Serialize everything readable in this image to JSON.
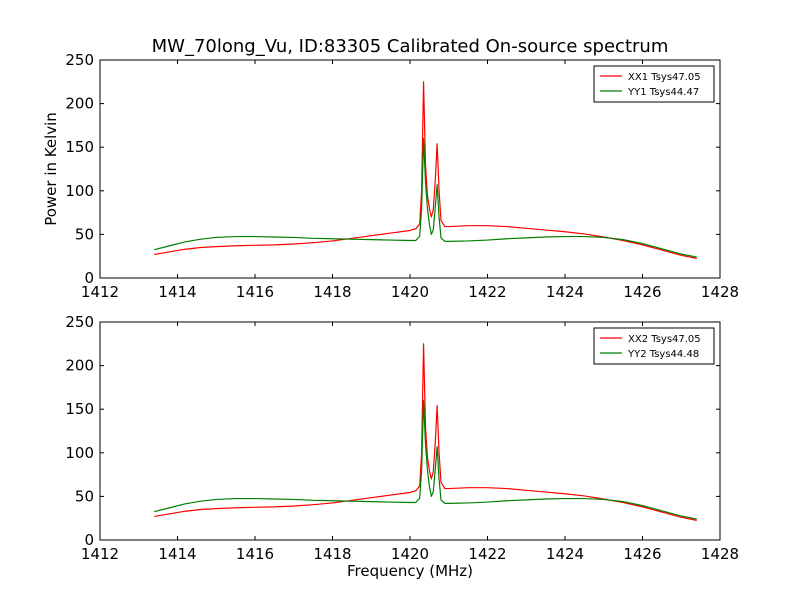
{
  "title": "MW_70long_Vu, ID:83305 Calibrated On-source spectrum",
  "colors": {
    "xx": "#ff0000",
    "yy": "#007f00"
  },
  "chart_data": [
    {
      "type": "line",
      "title": "MW_70long_Vu, ID:83305 Calibrated On-source spectrum",
      "xlabel": "",
      "ylabel": "Power in Kelvin",
      "xlim": [
        1412,
        1428
      ],
      "ylim": [
        0,
        250
      ],
      "xticks": [
        1412,
        1414,
        1416,
        1418,
        1420,
        1422,
        1424,
        1426,
        1428
      ],
      "yticks": [
        0,
        50,
        100,
        150,
        200,
        250
      ],
      "legend": "top-right",
      "series": [
        {
          "name": "XX1 Tsys47.05",
          "color": "#ff0000",
          "x": [
            1413.4,
            1413.8,
            1414.2,
            1414.6,
            1415.0,
            1415.5,
            1416.0,
            1416.5,
            1417.0,
            1417.5,
            1418.0,
            1418.5,
            1419.0,
            1419.5,
            1420.0,
            1420.15,
            1420.25,
            1420.3,
            1420.35,
            1420.4,
            1420.45,
            1420.5,
            1420.55,
            1420.6,
            1420.65,
            1420.7,
            1420.75,
            1420.8,
            1420.9,
            1421.0,
            1421.5,
            1422.0,
            1422.5,
            1423.0,
            1423.5,
            1424.0,
            1424.5,
            1425.0,
            1425.5,
            1426.0,
            1426.5,
            1427.0,
            1427.4
          ],
          "y": [
            27,
            30,
            33,
            35,
            36,
            37,
            37.5,
            38,
            39,
            40.5,
            42.5,
            45.5,
            48.5,
            51.5,
            54.5,
            56.5,
            62,
            100,
            225,
            130,
            95,
            80,
            70,
            78,
            110,
            154,
            100,
            66,
            59,
            59,
            60,
            60,
            59,
            57,
            55,
            53,
            50.5,
            47,
            43,
            38,
            32,
            26,
            22.5
          ]
        },
        {
          "name": "YY1 Tsys44.47",
          "color": "#007f00",
          "x": [
            1413.4,
            1413.8,
            1414.2,
            1414.6,
            1415.0,
            1415.5,
            1416.0,
            1416.5,
            1417.0,
            1417.5,
            1418.0,
            1418.5,
            1419.0,
            1419.5,
            1420.0,
            1420.15,
            1420.25,
            1420.3,
            1420.35,
            1420.4,
            1420.45,
            1420.5,
            1420.55,
            1420.6,
            1420.65,
            1420.7,
            1420.75,
            1420.8,
            1420.9,
            1421.0,
            1421.5,
            1422.0,
            1422.5,
            1423.0,
            1423.5,
            1424.0,
            1424.5,
            1425.0,
            1425.5,
            1426.0,
            1426.5,
            1427.0,
            1427.4
          ],
          "y": [
            32.5,
            37,
            41.5,
            44.5,
            46.5,
            47.5,
            47.5,
            47,
            46.5,
            45.5,
            45,
            44.5,
            44,
            43.5,
            43,
            43,
            48,
            80,
            160,
            110,
            80,
            62,
            50,
            55,
            80,
            107,
            70,
            46,
            42,
            42,
            42.5,
            43.5,
            45,
            46,
            47,
            47.5,
            47.5,
            46.5,
            44,
            39.5,
            33.5,
            27.5,
            24
          ]
        }
      ]
    },
    {
      "type": "line",
      "title": "",
      "xlabel": "Frequency (MHz)",
      "ylabel": "",
      "xlim": [
        1412,
        1428
      ],
      "ylim": [
        0,
        250
      ],
      "xticks": [
        1412,
        1414,
        1416,
        1418,
        1420,
        1422,
        1424,
        1426,
        1428
      ],
      "yticks": [
        0,
        50,
        100,
        150,
        200,
        250
      ],
      "legend": "top-right",
      "series": [
        {
          "name": "XX2 Tsys47.05",
          "color": "#ff0000",
          "x": [
            1413.4,
            1413.8,
            1414.2,
            1414.6,
            1415.0,
            1415.5,
            1416.0,
            1416.5,
            1417.0,
            1417.5,
            1418.0,
            1418.5,
            1419.0,
            1419.5,
            1420.0,
            1420.15,
            1420.25,
            1420.3,
            1420.35,
            1420.4,
            1420.45,
            1420.5,
            1420.55,
            1420.6,
            1420.65,
            1420.7,
            1420.75,
            1420.8,
            1420.9,
            1421.0,
            1421.5,
            1422.0,
            1422.5,
            1423.0,
            1423.5,
            1424.0,
            1424.5,
            1425.0,
            1425.5,
            1426.0,
            1426.5,
            1427.0,
            1427.4
          ],
          "y": [
            27,
            30,
            33,
            35,
            36,
            37,
            37.5,
            38,
            39,
            40.5,
            42.5,
            45.5,
            48.5,
            51.5,
            54.5,
            56.5,
            62,
            100,
            225,
            130,
            95,
            80,
            70,
            78,
            110,
            154,
            100,
            66,
            59,
            59,
            60,
            60,
            59,
            57,
            55,
            53,
            50.5,
            47,
            43,
            38,
            32,
            26,
            22.5
          ]
        },
        {
          "name": "YY2 Tsys44.48",
          "color": "#007f00",
          "x": [
            1413.4,
            1413.8,
            1414.2,
            1414.6,
            1415.0,
            1415.5,
            1416.0,
            1416.5,
            1417.0,
            1417.5,
            1418.0,
            1418.5,
            1419.0,
            1419.5,
            1420.0,
            1420.15,
            1420.25,
            1420.3,
            1420.35,
            1420.4,
            1420.45,
            1420.5,
            1420.55,
            1420.6,
            1420.65,
            1420.7,
            1420.75,
            1420.8,
            1420.9,
            1421.0,
            1421.5,
            1422.0,
            1422.5,
            1423.0,
            1423.5,
            1424.0,
            1424.5,
            1425.0,
            1425.5,
            1426.0,
            1426.5,
            1427.0,
            1427.4
          ],
          "y": [
            32.5,
            37,
            41.5,
            44.5,
            46.5,
            47.5,
            47.5,
            47,
            46.5,
            45.5,
            45,
            44.5,
            44,
            43.5,
            43,
            43,
            48,
            80,
            160,
            110,
            80,
            62,
            50,
            55,
            80,
            107,
            70,
            46,
            42,
            42,
            42.5,
            43.5,
            45,
            46,
            47,
            47.5,
            47.5,
            46.5,
            44,
            39.5,
            33.5,
            27.5,
            24
          ]
        }
      ]
    }
  ]
}
